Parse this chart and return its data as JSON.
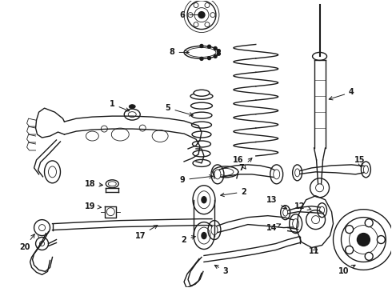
{
  "bg_color": "#ffffff",
  "fig_width": 4.9,
  "fig_height": 3.6,
  "dpi": 100,
  "color": "#1a1a1a",
  "lw_main": 1.0,
  "lw_thick": 1.5,
  "lw_thin": 0.6,
  "label_fontsize": 7.0
}
